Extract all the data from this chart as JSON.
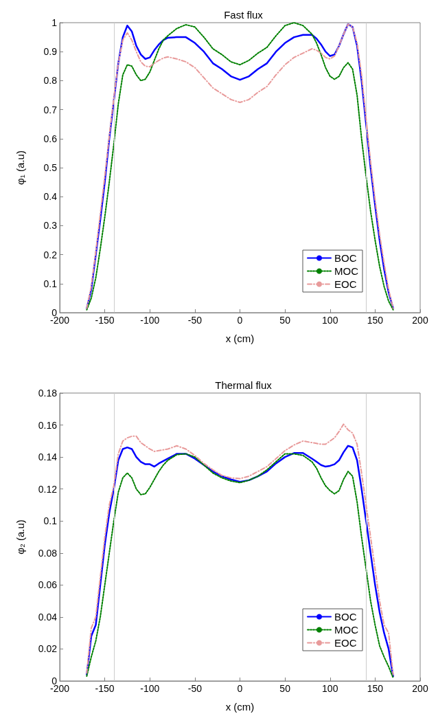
{
  "chart_data": [
    {
      "type": "line",
      "title": "Fast flux",
      "xlabel": "x (cm)",
      "ylabel": "φ₁ (a.u)",
      "x": [
        -170,
        -165,
        -160,
        -155,
        -150,
        -145,
        -140,
        -135,
        -130,
        -125,
        -120,
        -115,
        -110,
        -105,
        -100,
        -95,
        -90,
        -85,
        -80,
        -70,
        -60,
        -50,
        -40,
        -30,
        -20,
        -10,
        0,
        10,
        20,
        30,
        40,
        50,
        60,
        70,
        80,
        85,
        90,
        95,
        100,
        105,
        110,
        115,
        120,
        125,
        130,
        135,
        140,
        145,
        150,
        155,
        160,
        165,
        170
      ],
      "series": [
        {
          "name": "BOC",
          "color": "#0000ff",
          "line_style": "solid",
          "values": [
            0.015,
            0.08,
            0.2,
            0.32,
            0.45,
            0.6,
            0.73,
            0.86,
            0.95,
            0.99,
            0.97,
            0.92,
            0.89,
            0.875,
            0.88,
            0.905,
            0.925,
            0.94,
            0.948,
            0.95,
            0.95,
            0.93,
            0.9,
            0.86,
            0.84,
            0.815,
            0.803,
            0.815,
            0.84,
            0.86,
            0.9,
            0.93,
            0.95,
            0.958,
            0.958,
            0.945,
            0.925,
            0.9,
            0.885,
            0.89,
            0.92,
            0.96,
            0.995,
            0.985,
            0.92,
            0.8,
            0.65,
            0.5,
            0.37,
            0.25,
            0.15,
            0.07,
            0.015
          ]
        },
        {
          "name": "MOC",
          "color": "#008000",
          "line_style": "dotted",
          "values": [
            0.01,
            0.05,
            0.12,
            0.22,
            0.33,
            0.45,
            0.58,
            0.72,
            0.82,
            0.855,
            0.85,
            0.82,
            0.8,
            0.805,
            0.83,
            0.87,
            0.91,
            0.94,
            0.955,
            0.98,
            0.993,
            0.985,
            0.95,
            0.91,
            0.89,
            0.865,
            0.855,
            0.87,
            0.895,
            0.915,
            0.955,
            0.99,
            1.0,
            0.99,
            0.96,
            0.93,
            0.89,
            0.845,
            0.815,
            0.805,
            0.815,
            0.845,
            0.862,
            0.84,
            0.75,
            0.6,
            0.47,
            0.35,
            0.25,
            0.16,
            0.09,
            0.04,
            0.01
          ]
        },
        {
          "name": "EOC",
          "color": "#e89a9a",
          "line_style": "dashed",
          "values": [
            0.015,
            0.09,
            0.21,
            0.34,
            0.47,
            0.61,
            0.74,
            0.86,
            0.94,
            0.965,
            0.94,
            0.9,
            0.865,
            0.85,
            0.848,
            0.86,
            0.87,
            0.878,
            0.882,
            0.875,
            0.865,
            0.845,
            0.81,
            0.775,
            0.755,
            0.735,
            0.725,
            0.735,
            0.76,
            0.78,
            0.82,
            0.855,
            0.88,
            0.895,
            0.91,
            0.905,
            0.895,
            0.88,
            0.875,
            0.885,
            0.92,
            0.96,
            0.995,
            0.985,
            0.93,
            0.82,
            0.67,
            0.52,
            0.39,
            0.27,
            0.17,
            0.08,
            0.015
          ]
        }
      ],
      "xlim": [
        -200,
        200
      ],
      "xticks": [
        -200,
        -150,
        -100,
        -50,
        0,
        50,
        100,
        150,
        200
      ],
      "ylim": [
        0,
        1
      ],
      "yticks": [
        0,
        0.1,
        0.2,
        0.3,
        0.4,
        0.5,
        0.6,
        0.7,
        0.8,
        0.9,
        1
      ],
      "ref_lines": [
        {
          "axis": "x",
          "value": -140,
          "color": "#cccccc"
        },
        {
          "axis": "x",
          "value": 140,
          "color": "#cccccc"
        }
      ],
      "grid": false,
      "legend": "bottom right",
      "marker": "none"
    },
    {
      "type": "line",
      "title": "Thermal flux",
      "xlabel": "x (cm)",
      "ylabel": "φ₂ (a.u)",
      "x": [
        -170,
        -165,
        -160,
        -155,
        -150,
        -145,
        -140,
        -135,
        -130,
        -125,
        -120,
        -115,
        -110,
        -105,
        -100,
        -95,
        -90,
        -85,
        -80,
        -70,
        -60,
        -50,
        -40,
        -30,
        -20,
        -10,
        0,
        10,
        20,
        30,
        40,
        50,
        60,
        70,
        80,
        85,
        90,
        95,
        100,
        105,
        110,
        115,
        120,
        125,
        130,
        135,
        140,
        145,
        150,
        155,
        160,
        165,
        170
      ],
      "series": [
        {
          "name": "BOC",
          "color": "#0000ff",
          "line_style": "solid",
          "values": [
            0.004,
            0.028,
            0.035,
            0.06,
            0.085,
            0.105,
            0.12,
            0.138,
            0.145,
            0.146,
            0.145,
            0.14,
            0.137,
            0.1355,
            0.1355,
            0.134,
            0.136,
            0.1375,
            0.139,
            0.142,
            0.142,
            0.139,
            0.135,
            0.131,
            0.128,
            0.126,
            0.1245,
            0.1255,
            0.128,
            0.131,
            0.136,
            0.14,
            0.1425,
            0.1425,
            0.139,
            0.137,
            0.135,
            0.134,
            0.1345,
            0.1355,
            0.138,
            0.143,
            0.147,
            0.146,
            0.138,
            0.12,
            0.1,
            0.08,
            0.06,
            0.043,
            0.03,
            0.02,
            0.003
          ]
        },
        {
          "name": "MOC",
          "color": "#008000",
          "line_style": "dotted",
          "values": [
            0.003,
            0.015,
            0.025,
            0.04,
            0.06,
            0.08,
            0.1,
            0.118,
            0.127,
            0.13,
            0.127,
            0.12,
            0.1165,
            0.117,
            0.121,
            0.126,
            0.131,
            0.135,
            0.138,
            0.1415,
            0.142,
            0.14,
            0.135,
            0.13,
            0.127,
            0.125,
            0.124,
            0.1255,
            0.128,
            0.132,
            0.137,
            0.142,
            0.142,
            0.141,
            0.137,
            0.133,
            0.127,
            0.122,
            0.119,
            0.117,
            0.119,
            0.126,
            0.131,
            0.128,
            0.112,
            0.09,
            0.07,
            0.05,
            0.035,
            0.022,
            0.015,
            0.009,
            0.002
          ]
        },
        {
          "name": "EOC",
          "color": "#e89a9a",
          "line_style": "dashed",
          "values": [
            0.005,
            0.033,
            0.04,
            0.065,
            0.09,
            0.11,
            0.122,
            0.142,
            0.15,
            0.152,
            0.153,
            0.153,
            0.149,
            0.147,
            0.145,
            0.1435,
            0.144,
            0.1445,
            0.145,
            0.147,
            0.145,
            0.141,
            0.136,
            0.132,
            0.1285,
            0.127,
            0.1265,
            0.128,
            0.131,
            0.134,
            0.139,
            0.144,
            0.1475,
            0.15,
            0.149,
            0.1485,
            0.148,
            0.148,
            0.15,
            0.152,
            0.156,
            0.1605,
            0.157,
            0.155,
            0.148,
            0.13,
            0.11,
            0.09,
            0.07,
            0.05,
            0.035,
            0.03,
            0.004
          ]
        }
      ],
      "xlim": [
        -200,
        200
      ],
      "xticks": [
        -200,
        -150,
        -100,
        -50,
        0,
        50,
        100,
        150,
        200
      ],
      "ylim": [
        0,
        0.18
      ],
      "yticks": [
        0,
        0.02,
        0.04,
        0.06,
        0.08,
        0.1,
        0.12,
        0.14,
        0.16,
        0.18
      ],
      "ref_lines": [
        {
          "axis": "x",
          "value": -140,
          "color": "#cccccc"
        },
        {
          "axis": "x",
          "value": 140,
          "color": "#cccccc"
        }
      ],
      "grid": false,
      "legend": "bottom right",
      "marker": "none"
    }
  ]
}
